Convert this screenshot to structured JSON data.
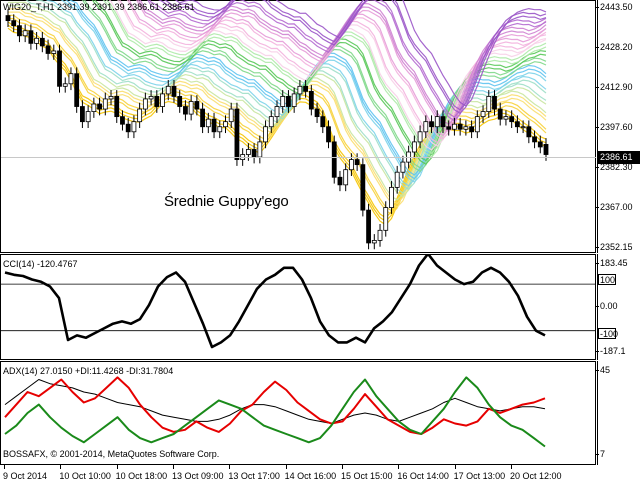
{
  "price_panel": {
    "title": "WIG20_T,H1  2391.39 2391.39 2386.61 2386.61",
    "annotation": "Średnie Guppy'ego",
    "current_price": "2386.61",
    "current_price_value": 2386.61,
    "y_ticks": [
      "2443.50",
      "2428.20",
      "2412.90",
      "2397.60",
      "2382.30",
      "2367.00",
      "2352.15"
    ],
    "y_tick_values": [
      2443.5,
      2428.2,
      2412.9,
      2397.6,
      2382.3,
      2367.0,
      2352.15
    ],
    "ylim": [
      2350.0,
      2445.0
    ],
    "colors": {
      "bull": "#ffffff",
      "bear": "#000000",
      "wick": "#000000",
      "price_line": "#c8c8c8"
    }
  },
  "cci_panel": {
    "title": "CCI(14) -120.4767",
    "y_ticks": [
      "183.45",
      "0.00",
      "-187.1"
    ],
    "y_tick_values": [
      183.45,
      0,
      -187.1
    ],
    "levels": [
      "100",
      "-100"
    ],
    "level_values": [
      100,
      -100
    ],
    "ylim": [
      -200,
      195
    ],
    "line_color": "#000000"
  },
  "adx_panel": {
    "title": "ADX(14) 27.0150 +DI:11.4268 -DI:31.7804",
    "y_ticks": [
      "45",
      "7"
    ],
    "y_tick_values": [
      45,
      7
    ],
    "ylim": [
      5,
      47
    ],
    "copyright": "BOSSAFX, © 2001-2014, MetaQuotes Software Corp.",
    "colors": {
      "adx": "#000000",
      "plus_di": "#1a8a1a",
      "minus_di": "#e60000"
    }
  },
  "x_axis": {
    "labels": [
      "9 Oct 2014",
      "10 Oct 10:00",
      "10 Oct 18:00",
      "13 Oct 09:00",
      "13 Oct 17:00",
      "14 Oct 16:00",
      "15 Oct 15:00",
      "16 Oct 14:00",
      "17 Oct 13:00",
      "20 Oct 12:00"
    ]
  },
  "chart_data": [
    {
      "type": "candlestick",
      "title": "WIG20_T,H1  2391.39 2391.39 2386.61 2386.61",
      "annotation": "Średnie Guppy'ego",
      "ylim": [
        2350.0,
        2445.0
      ],
      "close": [
        2440,
        2438,
        2434,
        2436,
        2431,
        2433,
        2430,
        2427,
        2428,
        2414,
        2415,
        2419,
        2406,
        2400,
        2404,
        2407,
        2405,
        2409,
        2410,
        2402,
        2399,
        2396,
        2400,
        2405,
        2409,
        2410,
        2406,
        2411,
        2414,
        2410,
        2406,
        2403,
        2408,
        2405,
        2398,
        2401,
        2396,
        2398,
        2400,
        2405,
        2385,
        2387,
        2389,
        2386,
        2392,
        2398,
        2402,
        2406,
        2410,
        2406,
        2411,
        2414,
        2412,
        2405,
        2402,
        2398,
        2392,
        2378,
        2375,
        2381,
        2385,
        2383,
        2365,
        2352,
        2353,
        2357,
        2366,
        2374,
        2380,
        2384,
        2388,
        2392,
        2396,
        2400,
        2398,
        2402,
        2398,
        2397,
        2399,
        2397,
        2398,
        2396,
        2402,
        2404,
        2410,
        2405,
        2401,
        2402,
        2400,
        2398,
        2398,
        2394,
        2392,
        2390,
        2387
      ],
      "open": [
        2442,
        2440,
        2438,
        2434,
        2436,
        2431,
        2433,
        2430,
        2427,
        2428,
        2414,
        2415,
        2419,
        2406,
        2400,
        2404,
        2407,
        2405,
        2409,
        2410,
        2402,
        2399,
        2396,
        2400,
        2405,
        2409,
        2410,
        2406,
        2411,
        2414,
        2410,
        2406,
        2403,
        2408,
        2405,
        2398,
        2401,
        2396,
        2398,
        2400,
        2405,
        2385,
        2387,
        2389,
        2386,
        2392,
        2398,
        2402,
        2406,
        2410,
        2406,
        2411,
        2414,
        2412,
        2405,
        2402,
        2398,
        2392,
        2378,
        2375,
        2381,
        2385,
        2383,
        2365,
        2352,
        2353,
        2357,
        2366,
        2374,
        2380,
        2384,
        2388,
        2392,
        2396,
        2400,
        2398,
        2402,
        2398,
        2397,
        2399,
        2397,
        2398,
        2396,
        2402,
        2404,
        2410,
        2405,
        2401,
        2402,
        2400,
        2398,
        2398,
        2394,
        2392,
        2391
      ]
    },
    {
      "type": "line",
      "title": "CCI(14) -120.4767",
      "ylim": [
        -200,
        195
      ],
      "values": [
        150,
        140,
        135,
        120,
        110,
        90,
        40,
        -140,
        -120,
        -130,
        -110,
        -90,
        -70,
        -60,
        -70,
        -50,
        10,
        90,
        130,
        150,
        110,
        20,
        -70,
        -170,
        -150,
        -120,
        -60,
        10,
        80,
        120,
        140,
        170,
        170,
        120,
        40,
        -60,
        -120,
        -150,
        -150,
        -130,
        -150,
        -90,
        -60,
        -20,
        40,
        100,
        180,
        230,
        180,
        150,
        120,
        100,
        110,
        150,
        170,
        150,
        110,
        50,
        -40,
        -100,
        -120
      ]
    },
    {
      "type": "line",
      "title": "ADX(14) 27.0150 +DI:11.4268 -DI:31.7804",
      "ylim": [
        5,
        47
      ],
      "series": [
        {
          "values": [
            30,
            34,
            38,
            42,
            40,
            39,
            38,
            36,
            35,
            33,
            31,
            30,
            29,
            27,
            25,
            24,
            23,
            22,
            22,
            23,
            25,
            28,
            30,
            30,
            29,
            27,
            25,
            23,
            22,
            21,
            23,
            25,
            26,
            25,
            23,
            22,
            24,
            26,
            28,
            31,
            33,
            31,
            29,
            28,
            27,
            28,
            29,
            29,
            28
          ]
        },
        {
          "values": [
            24,
            30,
            36,
            34,
            38,
            42,
            36,
            31,
            33,
            38,
            43,
            38,
            30,
            24,
            19,
            17,
            18,
            22,
            19,
            17,
            21,
            27,
            30,
            36,
            41,
            37,
            31,
            27,
            23,
            21,
            22,
            28,
            35,
            29,
            23,
            20,
            17,
            16,
            19,
            23,
            21,
            20,
            22,
            28,
            26,
            28,
            30,
            31,
            33
          ]
        },
        {
          "values": [
            16,
            20,
            26,
            30,
            24,
            19,
            15,
            12,
            16,
            20,
            24,
            18,
            14,
            12,
            14,
            16,
            20,
            24,
            28,
            32,
            30,
            28,
            24,
            20,
            18,
            16,
            14,
            12,
            14,
            20,
            28,
            36,
            42,
            34,
            28,
            22,
            18,
            16,
            22,
            28,
            36,
            43,
            38,
            30,
            24,
            20,
            18,
            14,
            10
          ]
        }
      ]
    }
  ]
}
